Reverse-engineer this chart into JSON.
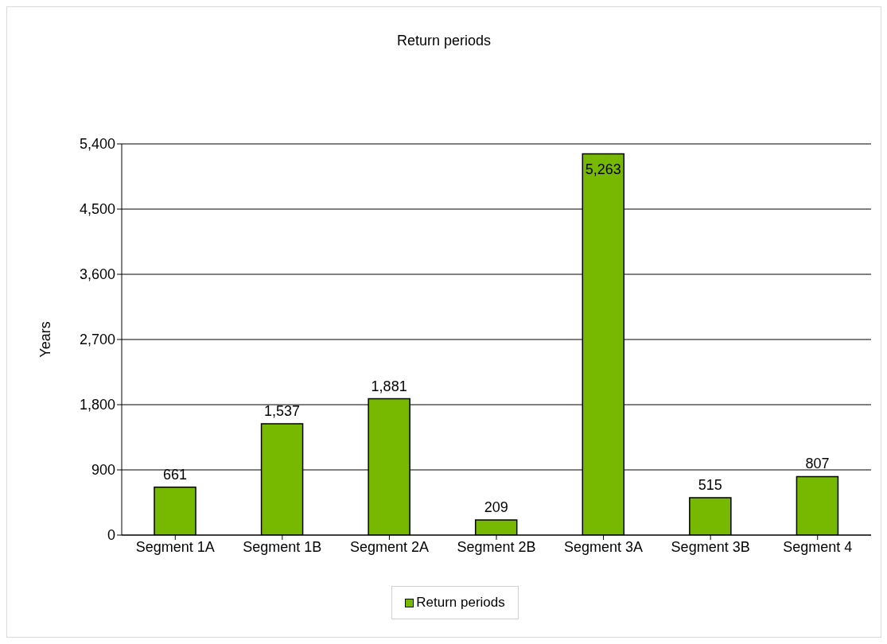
{
  "chart_data": {
    "type": "bar",
    "title": "Return periods",
    "ylabel": "Years",
    "categories": [
      "Segment 1A",
      "Segment 1B",
      "Segment 2A",
      "Segment 2B",
      "Segment 3A",
      "Segment 3B",
      "Segment 4"
    ],
    "series": [
      {
        "name": "Return periods",
        "color": "#77b800",
        "values": [
          661,
          1537,
          1881,
          209,
          5263,
          515,
          807
        ],
        "value_labels": [
          "661",
          "1,537",
          "1,881",
          "209",
          "5,263",
          "515",
          "807"
        ]
      }
    ],
    "ylim": [
      0,
      5400
    ],
    "yticks": [
      {
        "value": 0,
        "label": "0"
      },
      {
        "value": 900,
        "label": "900"
      },
      {
        "value": 1800,
        "label": "1,800"
      },
      {
        "value": 2700,
        "label": "2,700"
      },
      {
        "value": 3600,
        "label": "3,600"
      },
      {
        "value": 4500,
        "label": "4,500"
      },
      {
        "value": 5400,
        "label": "5,400"
      }
    ],
    "grid": "y",
    "legend": "bottom"
  }
}
